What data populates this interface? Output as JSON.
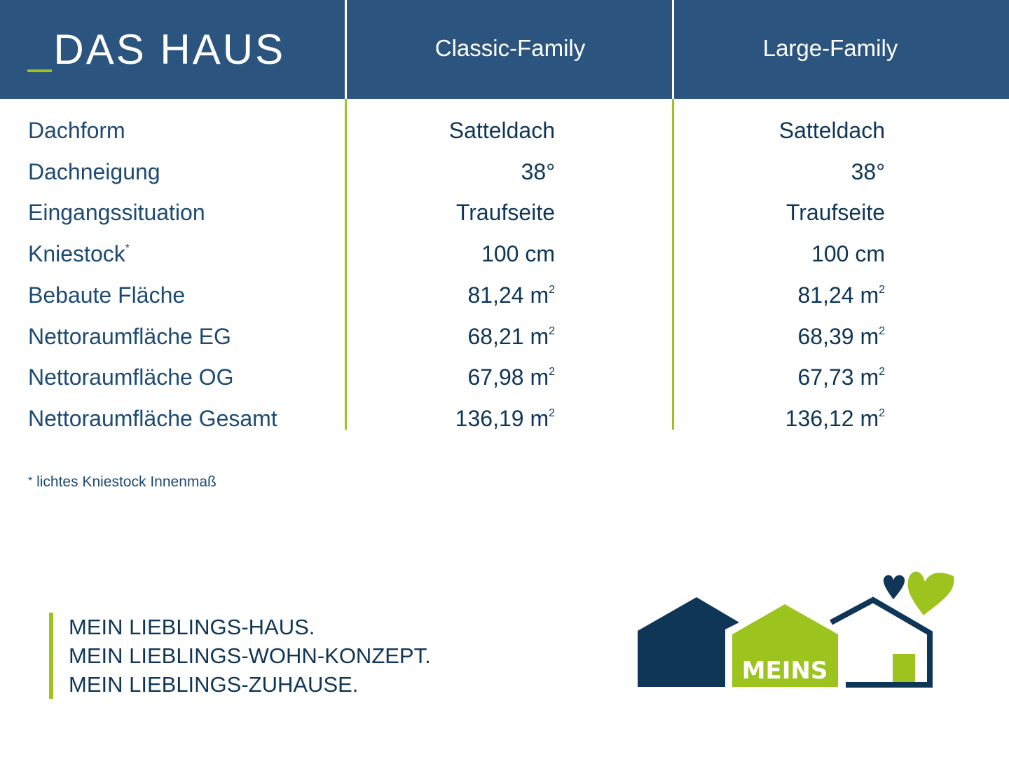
{
  "header": {
    "prefix": "_",
    "title": "DAS HAUS",
    "columns": [
      "Classic-Family",
      "Large-Family"
    ]
  },
  "rows": [
    {
      "label": "Dachform",
      "v1": "Satteldach",
      "v2": "Satteldach"
    },
    {
      "label": "Dachneigung",
      "v1": "38°",
      "v2": "38°"
    },
    {
      "label": "Eingangssituation",
      "v1": "Traufseite",
      "v2": "Traufseite"
    },
    {
      "label": "Kniestock",
      "mark": "*",
      "v1": "100 cm",
      "v2": "100 cm"
    },
    {
      "label": "Bebaute Fläche",
      "v1": "81,24 m",
      "v2": "81,24 m",
      "unit_exp": "2"
    },
    {
      "label": "Nettoraumfläche EG",
      "v1": "68,21 m",
      "v2": "68,39 m",
      "unit_exp": "2"
    },
    {
      "label": "Nettoraumfläche OG",
      "v1": "67,98 m",
      "v2": "67,73 m",
      "unit_exp": "2"
    },
    {
      "label": "Nettoraumfläche Gesamt",
      "v1": "136,19 m",
      "v2": "136,12 m",
      "unit_exp": "2"
    }
  ],
  "footnote": {
    "mark": "*",
    "text": "lichtes Kniestock Innenmaß"
  },
  "slogan": [
    "MEIN LIEBLINGS-HAUS.",
    "MEIN LIEBLINGS-WOHN-KONZEPT.",
    "MEIN LIEBLINGS-ZUHAUSE."
  ],
  "logo": {
    "text": "MEINS"
  },
  "colors": {
    "header": "#2b547e",
    "navy": "#0f3657",
    "green": "#9dc41e"
  }
}
